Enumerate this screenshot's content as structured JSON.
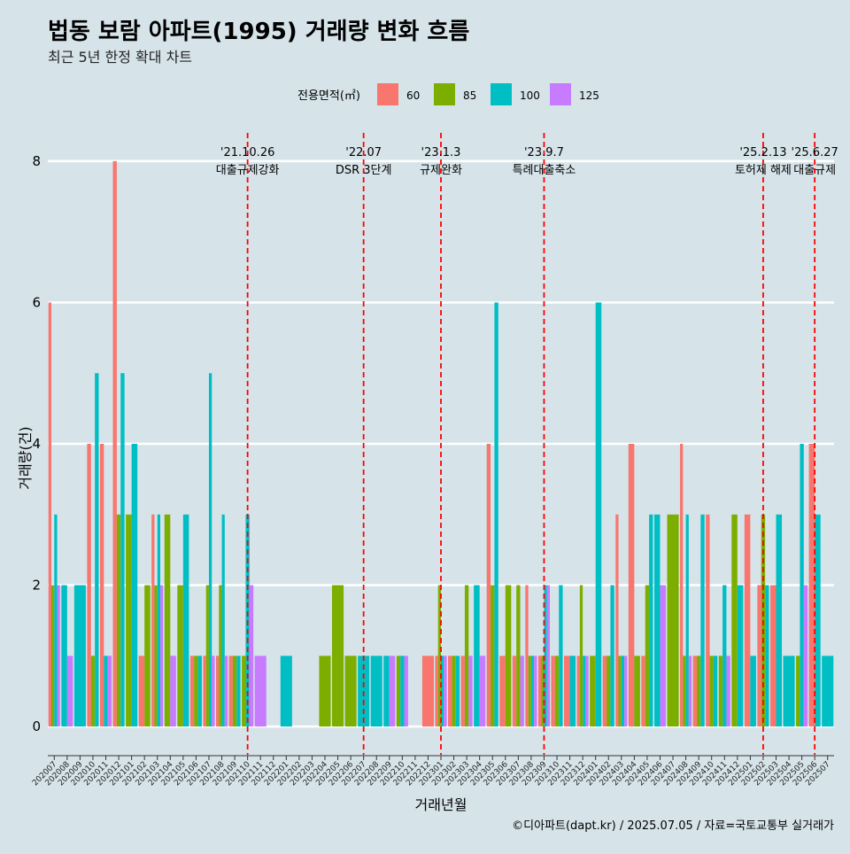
{
  "chart_data": {
    "type": "bar",
    "title": "법동 보람 아파트(1995) 거래량 변화 흐름",
    "subtitle": "최근 5년 한정 확대 차트",
    "xlabel": "거래년월",
    "ylabel": "거래량(건)",
    "ylim": [
      -0.4,
      8.4
    ],
    "yticks": [
      0,
      2,
      4,
      6,
      8
    ],
    "legend": {
      "title": "전용면적(㎡)",
      "position": "top",
      "entries": [
        {
          "name": "60",
          "color": "#F8766D"
        },
        {
          "name": "85",
          "color": "#7CAE00"
        },
        {
          "name": "100",
          "color": "#00BFC4"
        },
        {
          "name": "125",
          "color": "#C77CFF"
        }
      ]
    },
    "categories": [
      "202007",
      "202008",
      "202009",
      "202010",
      "202011",
      "202012",
      "202101",
      "202102",
      "202103",
      "202104",
      "202105",
      "202106",
      "202107",
      "202108",
      "202109",
      "202110",
      "202111",
      "202112",
      "202201",
      "202202",
      "202203",
      "202204",
      "202205",
      "202206",
      "202207",
      "202208",
      "202209",
      "202210",
      "202211",
      "202212",
      "202301",
      "202302",
      "202303",
      "202304",
      "202305",
      "202306",
      "202307",
      "202308",
      "202309",
      "202310",
      "202311",
      "202312",
      "202401",
      "202402",
      "202403",
      "202404",
      "202405",
      "202406",
      "202407",
      "202408",
      "202409",
      "202410",
      "202411",
      "202412",
      "202501",
      "202502",
      "202503",
      "202504",
      "202505",
      "202506",
      "202507"
    ],
    "series": [
      {
        "name": "60",
        "color": "#F8766D",
        "values": [
          6,
          null,
          null,
          4,
          4,
          8,
          null,
          1,
          3,
          null,
          null,
          1,
          1,
          1,
          1,
          null,
          null,
          null,
          null,
          null,
          null,
          null,
          null,
          null,
          null,
          null,
          null,
          null,
          null,
          1,
          1,
          1,
          1,
          null,
          4,
          1,
          1,
          2,
          1,
          1,
          1,
          1,
          null,
          1,
          3,
          4,
          1,
          null,
          null,
          4,
          1,
          3,
          null,
          null,
          3,
          2,
          2,
          null,
          null,
          4,
          null
        ]
      },
      {
        "name": "85",
        "color": "#7CAE00",
        "values": [
          2,
          null,
          null,
          1,
          null,
          3,
          3,
          2,
          2,
          3,
          2,
          1,
          2,
          2,
          1,
          1,
          null,
          null,
          null,
          null,
          null,
          1,
          2,
          1,
          null,
          null,
          null,
          1,
          null,
          null,
          2,
          1,
          2,
          null,
          2,
          2,
          2,
          1,
          1,
          1,
          null,
          2,
          1,
          1,
          1,
          1,
          2,
          null,
          3,
          1,
          1,
          1,
          1,
          3,
          null,
          3,
          null,
          null,
          1,
          null,
          null
        ]
      },
      {
        "name": "100",
        "color": "#00BFC4",
        "values": [
          3,
          2,
          2,
          5,
          1,
          5,
          4,
          null,
          3,
          null,
          3,
          1,
          5,
          3,
          1,
          3,
          null,
          null,
          1,
          null,
          null,
          null,
          null,
          null,
          1,
          1,
          1,
          1,
          null,
          null,
          1,
          1,
          null,
          2,
          6,
          null,
          null,
          1,
          2,
          2,
          1,
          1,
          6,
          2,
          1,
          null,
          3,
          3,
          null,
          3,
          3,
          1,
          2,
          2,
          1,
          2,
          3,
          1,
          4,
          3,
          1
        ]
      },
      {
        "name": "125",
        "color": "#C77CFF",
        "values": [
          2,
          1,
          null,
          null,
          1,
          null,
          null,
          null,
          2,
          1,
          null,
          null,
          1,
          1,
          null,
          2,
          1,
          null,
          null,
          null,
          null,
          null,
          null,
          null,
          null,
          null,
          1,
          1,
          null,
          null,
          1,
          null,
          1,
          1,
          null,
          null,
          1,
          1,
          2,
          null,
          null,
          1,
          null,
          null,
          1,
          null,
          null,
          2,
          null,
          1,
          null,
          null,
          1,
          null,
          null,
          null,
          null,
          null,
          2,
          null,
          null
        ]
      }
    ],
    "annotations": [
      {
        "category": "202110",
        "date": "'21.10.26",
        "label": "대출규제강화"
      },
      {
        "category": "202207",
        "date": "'22.07",
        "label": "DSR 3단계"
      },
      {
        "category": "202301",
        "date": "'23.1.3",
        "label": "규제완화"
      },
      {
        "category": "202309",
        "date": "'23.9.7",
        "label": "특례대출축소"
      },
      {
        "category": "202502",
        "date": "'25.2.13",
        "label": "토허제 해제"
      },
      {
        "category": "202506",
        "date": "'25.6.27",
        "label": "대출규제"
      }
    ],
    "caption": "©디아파트(dapt.kr) / 2025.07.05 / 자료=국토교통부 실거래가"
  }
}
